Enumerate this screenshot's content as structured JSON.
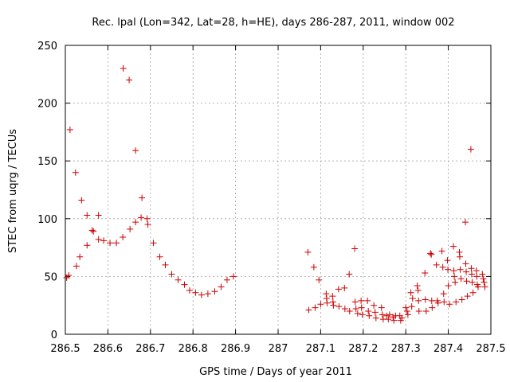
{
  "chart_data": {
    "type": "scatter",
    "title": "Rec. lpal (Lon=342, Lat=28, h=HE), days 286-287, 2011, window 002",
    "xlabel": "GPS time / Days of year 2011",
    "ylabel": "STEC from uqrg / TECUs",
    "xlim": [
      286.5,
      287.5
    ],
    "ylim": [
      0,
      250
    ],
    "xticks": [
      286.5,
      286.6,
      286.7,
      286.8,
      286.9,
      287.0,
      287.1,
      287.2,
      287.3,
      287.4,
      287.5
    ],
    "xtick_labels": [
      "286.5",
      "286.6",
      "286.7",
      "286.8",
      "286.9",
      "287",
      "287.1",
      "287.2",
      "287.3",
      "287.4",
      "287.5"
    ],
    "yticks": [
      0,
      50,
      100,
      150,
      200,
      250
    ],
    "ytick_labels": [
      "0",
      "50",
      "100",
      "150",
      "200",
      "250"
    ],
    "grid": true,
    "marker": "+",
    "color": "#cc0000",
    "series": [
      {
        "points": [
          [
            286.503,
            49
          ],
          [
            286.508,
            51
          ],
          [
            286.511,
            177
          ],
          [
            286.524,
            140
          ],
          [
            286.526,
            59
          ],
          [
            286.534,
            67
          ],
          [
            286.538,
            116
          ],
          [
            286.551,
            103
          ],
          [
            286.551,
            77
          ],
          [
            286.563,
            90
          ],
          [
            286.566,
            89
          ],
          [
            286.578,
            103
          ],
          [
            286.578,
            82
          ],
          [
            286.59,
            81
          ],
          [
            286.605,
            79
          ],
          [
            286.62,
            79
          ],
          [
            286.635,
            84
          ],
          [
            286.636,
            230
          ],
          [
            286.65,
            220
          ],
          [
            286.652,
            91
          ],
          [
            286.665,
            97
          ],
          [
            286.665,
            159
          ],
          [
            286.678,
            101
          ],
          [
            286.68,
            118
          ],
          [
            286.692,
            100
          ],
          [
            286.694,
            95
          ],
          [
            286.707,
            79
          ],
          [
            286.722,
            67
          ],
          [
            286.735,
            60
          ],
          [
            286.75,
            52
          ],
          [
            286.765,
            47
          ],
          [
            286.78,
            43
          ],
          [
            286.792,
            38
          ],
          [
            286.806,
            36
          ],
          [
            286.82,
            34
          ],
          [
            286.835,
            35
          ],
          [
            286.851,
            37
          ],
          [
            286.866,
            41
          ],
          [
            286.88,
            47
          ],
          [
            286.895,
            50
          ],
          [
            287.07,
            71
          ],
          [
            287.072,
            21
          ],
          [
            287.084,
            58
          ],
          [
            287.087,
            23
          ],
          [
            287.096,
            47
          ],
          [
            287.1,
            26
          ],
          [
            287.113,
            35
          ],
          [
            287.114,
            31
          ],
          [
            287.115,
            27
          ],
          [
            287.128,
            33
          ],
          [
            287.129,
            28
          ],
          [
            287.13,
            25
          ],
          [
            287.142,
            39
          ],
          [
            287.143,
            24
          ],
          [
            287.156,
            40
          ],
          [
            287.157,
            22
          ],
          [
            287.167,
            52
          ],
          [
            287.168,
            20
          ],
          [
            287.18,
            74
          ],
          [
            287.181,
            28
          ],
          [
            287.183,
            22
          ],
          [
            287.187,
            18
          ],
          [
            287.195,
            29
          ],
          [
            287.196,
            23
          ],
          [
            287.198,
            17
          ],
          [
            287.21,
            29
          ],
          [
            287.212,
            20
          ],
          [
            287.214,
            16
          ],
          [
            287.225,
            25
          ],
          [
            287.228,
            19
          ],
          [
            287.23,
            14
          ],
          [
            287.243,
            23
          ],
          [
            287.245,
            17
          ],
          [
            287.247,
            13
          ],
          [
            287.255,
            16
          ],
          [
            287.259,
            13
          ],
          [
            287.262,
            17
          ],
          [
            287.27,
            15
          ],
          [
            287.272,
            12
          ],
          [
            287.276,
            16
          ],
          [
            287.286,
            16
          ],
          [
            287.288,
            12
          ],
          [
            287.291,
            14
          ],
          [
            287.3,
            23
          ],
          [
            287.303,
            20
          ],
          [
            287.305,
            17
          ],
          [
            287.312,
            36
          ],
          [
            287.314,
            24
          ],
          [
            287.316,
            31
          ],
          [
            287.327,
            42
          ],
          [
            287.329,
            38
          ],
          [
            287.33,
            29
          ],
          [
            287.331,
            20
          ],
          [
            287.345,
            53
          ],
          [
            287.346,
            30
          ],
          [
            287.348,
            20
          ],
          [
            287.358,
            70
          ],
          [
            287.36,
            69
          ],
          [
            287.361,
            29
          ],
          [
            287.362,
            23
          ],
          [
            287.372,
            60
          ],
          [
            287.374,
            29
          ],
          [
            287.376,
            27
          ],
          [
            287.385,
            72
          ],
          [
            287.387,
            58
          ],
          [
            287.389,
            35
          ],
          [
            287.39,
            28
          ],
          [
            287.398,
            64
          ],
          [
            287.399,
            56
          ],
          [
            287.4,
            42
          ],
          [
            287.403,
            26
          ],
          [
            287.412,
            76
          ],
          [
            287.413,
            55
          ],
          [
            287.414,
            50
          ],
          [
            287.416,
            45
          ],
          [
            287.418,
            28
          ],
          [
            287.426,
            71
          ],
          [
            287.427,
            67
          ],
          [
            287.428,
            56
          ],
          [
            287.43,
            48
          ],
          [
            287.432,
            30
          ],
          [
            287.44,
            97
          ],
          [
            287.441,
            61
          ],
          [
            287.442,
            54
          ],
          [
            287.443,
            46
          ],
          [
            287.445,
            33
          ],
          [
            287.453,
            160
          ],
          [
            287.454,
            57
          ],
          [
            287.455,
            52
          ],
          [
            287.456,
            45
          ],
          [
            287.458,
            36
          ],
          [
            287.466,
            55
          ],
          [
            287.467,
            50
          ],
          [
            287.468,
            43
          ],
          [
            287.47,
            41
          ],
          [
            287.48,
            52
          ],
          [
            287.482,
            48
          ],
          [
            287.484,
            45
          ],
          [
            287.486,
            41
          ]
        ]
      }
    ]
  }
}
